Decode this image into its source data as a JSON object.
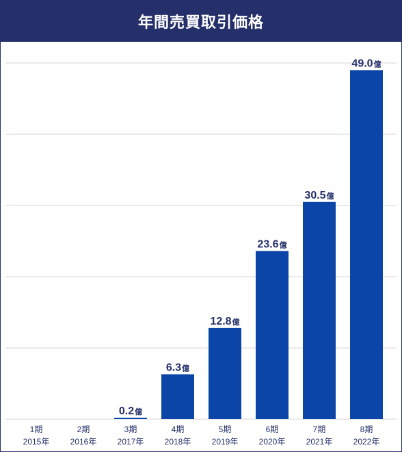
{
  "chart_data": {
    "type": "bar",
    "title": "年間売買取引価格",
    "categories": [
      "1期",
      "2期",
      "3期",
      "4期",
      "5期",
      "6期",
      "7期",
      "8期"
    ],
    "years": [
      "2015年",
      "2016年",
      "2017年",
      "2018年",
      "2019年",
      "2020年",
      "2021年",
      "2022年"
    ],
    "values": [
      0,
      0,
      0.2,
      6.3,
      12.8,
      23.6,
      30.5,
      49.0
    ],
    "value_labels": [
      "",
      "",
      "0.2",
      "6.3",
      "12.8",
      "23.6",
      "30.5",
      "49.0"
    ],
    "unit": "億",
    "ylim": [
      0,
      50
    ],
    "grid": true,
    "colors": {
      "bar": "#0b45a8",
      "header": "#25306b",
      "text": "#25306b",
      "grid": "#d4d4d4"
    }
  }
}
